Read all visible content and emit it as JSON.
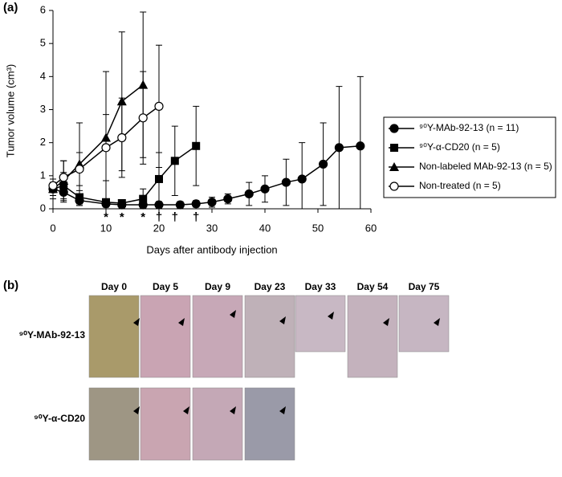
{
  "chart_data": {
    "type": "line",
    "panel_label": "(a)",
    "xlabel": "Days after antibody injection",
    "ylabel": "Tumor volume (cm³)",
    "xlim": [
      0,
      60
    ],
    "xticks": [
      0,
      10,
      20,
      30,
      40,
      50,
      60
    ],
    "ylim": [
      0,
      6
    ],
    "yticks": [
      0,
      1,
      2,
      3,
      4,
      5,
      6
    ],
    "series": [
      {
        "name": "⁹⁰Y-MAb-92-13 (n = 11)",
        "color": "#000",
        "marker": "circle",
        "x": [
          0,
          2,
          5,
          10,
          13,
          17,
          20,
          24,
          27,
          30,
          33,
          37,
          40,
          44,
          47,
          51,
          54,
          58
        ],
        "values": [
          0.6,
          0.5,
          0.25,
          0.15,
          0.12,
          0.12,
          0.12,
          0.12,
          0.15,
          0.2,
          0.3,
          0.45,
          0.6,
          0.8,
          0.9,
          1.35,
          1.85,
          1.9
        ],
        "errors": [
          0.2,
          0.3,
          0.15,
          0.1,
          0.1,
          0.1,
          0.1,
          0.1,
          0.1,
          0.15,
          0.15,
          0.35,
          0.4,
          0.7,
          1.1,
          1.25,
          1.85,
          2.1
        ]
      },
      {
        "name": "⁹⁰Y-α-CD20 (n = 5)",
        "color": "#000",
        "marker": "square",
        "x": [
          0,
          2,
          5,
          10,
          13,
          17,
          20,
          23,
          27
        ],
        "values": [
          0.6,
          0.7,
          0.35,
          0.2,
          0.17,
          0.3,
          0.9,
          1.45,
          1.9
        ],
        "errors": [
          0.3,
          0.4,
          0.2,
          0.1,
          0.1,
          0.3,
          0.8,
          1.05,
          1.2
        ]
      },
      {
        "name": "Non-labeled MAb-92-13 (n = 5)",
        "color": "#000",
        "marker": "triangle",
        "x": [
          0,
          2,
          5,
          10,
          13,
          17
        ],
        "values": [
          0.6,
          0.85,
          1.35,
          2.15,
          3.25,
          3.75
        ],
        "errors": [
          0.2,
          0.6,
          1.25,
          2.0,
          2.1,
          2.2
        ]
      },
      {
        "name": "Non-treated (n = 5)",
        "color": "#000",
        "marker": "open-circle",
        "x": [
          0,
          2,
          5,
          10,
          13,
          17,
          20
        ],
        "values": [
          0.7,
          0.95,
          1.2,
          1.85,
          2.15,
          2.75,
          3.1
        ],
        "errors": [
          0.2,
          0.5,
          0.5,
          1.0,
          1.2,
          1.4,
          1.85
        ]
      }
    ],
    "annotations": [
      {
        "x": 10,
        "text": "*"
      },
      {
        "x": 13,
        "text": "*"
      },
      {
        "x": 17,
        "text": "*"
      },
      {
        "x": 20,
        "text": "†"
      },
      {
        "x": 23,
        "text": "†"
      },
      {
        "x": 27,
        "text": "†"
      }
    ]
  },
  "photos": {
    "panel_label": "(b)",
    "days": [
      "Day 0",
      "Day 5",
      "Day 9",
      "Day 23",
      "Day 33",
      "Day 54",
      "Day 75"
    ],
    "rows": [
      "⁹⁰Y-MAb-92-13",
      "⁹⁰Y-α-CD20"
    ]
  }
}
